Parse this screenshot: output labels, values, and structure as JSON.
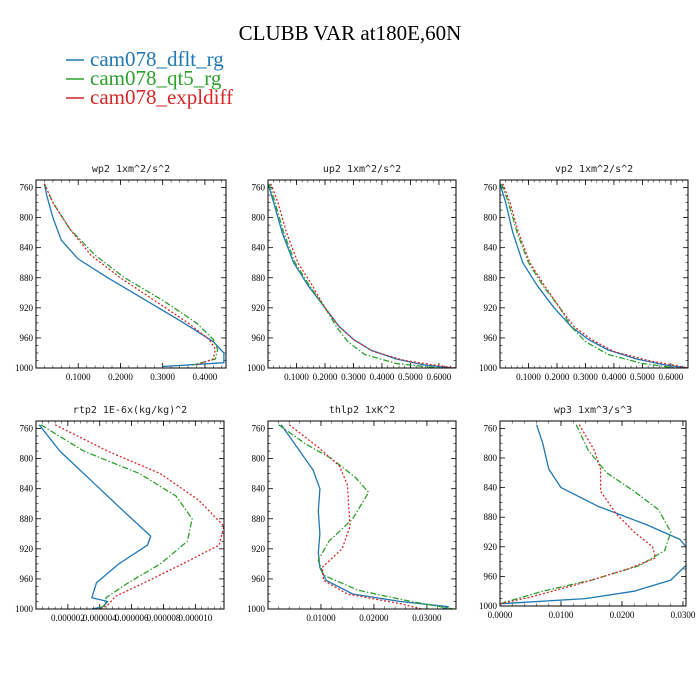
{
  "figure": {
    "title": "CLUBB VAR at180E,60N",
    "legend": [
      {
        "label": "cam078_dflt_rg",
        "color": "#1f77b4",
        "dash": "solid"
      },
      {
        "label": "cam078_qt5_rg",
        "color": "#2ca02c",
        "dash": "dashdot"
      },
      {
        "label": "cam078_expldiff",
        "color": "#d62728",
        "dash": "dot"
      }
    ]
  },
  "chart_data": [
    {
      "type": "line",
      "title": "wp2  1xm^2/s^2",
      "xlim": [
        0,
        0.45
      ],
      "ylim": [
        1000,
        750
      ],
      "xticks": [
        0.1,
        0.2,
        0.3,
        0.4
      ],
      "xtick_labels": [
        "0.1000",
        "0.2000",
        "0.3000",
        "0.4000"
      ],
      "yticks": [
        760,
        800,
        840,
        880,
        920,
        960,
        1000
      ],
      "series": [
        {
          "name": "cam078_dflt_rg",
          "x": [
            0.02,
            0.025,
            0.04,
            0.06,
            0.1,
            0.17,
            0.26,
            0.35,
            0.42,
            0.445,
            0.445,
            0.3
          ],
          "y": [
            755,
            770,
            800,
            830,
            855,
            880,
            910,
            940,
            965,
            980,
            993,
            998
          ]
        },
        {
          "name": "cam078_qt5_rg",
          "x": [
            0.02,
            0.04,
            0.08,
            0.14,
            0.21,
            0.3,
            0.38,
            0.42,
            0.43,
            0.425,
            0.37
          ],
          "y": [
            755,
            780,
            815,
            850,
            880,
            910,
            940,
            962,
            975,
            988,
            996
          ]
        },
        {
          "name": "cam078_expldiff",
          "x": [
            0.02,
            0.04,
            0.08,
            0.13,
            0.2,
            0.28,
            0.36,
            0.41,
            0.425,
            0.42,
            0.38
          ],
          "y": [
            755,
            780,
            815,
            850,
            880,
            910,
            940,
            962,
            975,
            988,
            996
          ]
        }
      ]
    },
    {
      "type": "line",
      "title": "up2  1xm^2/s^2",
      "xlim": [
        0,
        0.66
      ],
      "ylim": [
        1000,
        750
      ],
      "xticks": [
        0.1,
        0.2,
        0.3,
        0.4,
        0.5,
        0.6
      ],
      "xtick_labels": [
        "0.1000",
        "0.2000",
        "0.3000",
        "0.4000",
        "0.5000",
        "0.6000"
      ],
      "yticks": [
        760,
        800,
        840,
        880,
        920,
        960,
        1000
      ],
      "series": [
        {
          "name": "cam078_dflt_rg",
          "x": [
            0.0,
            0.02,
            0.05,
            0.09,
            0.14,
            0.2,
            0.25,
            0.3,
            0.36,
            0.45,
            0.55,
            0.65
          ],
          "y": [
            755,
            780,
            820,
            860,
            890,
            920,
            945,
            962,
            976,
            988,
            996,
            1000
          ]
        },
        {
          "name": "cam078_qt5_rg",
          "x": [
            0.005,
            0.025,
            0.055,
            0.095,
            0.145,
            0.2,
            0.24,
            0.28,
            0.34,
            0.45,
            0.6
          ],
          "y": [
            755,
            780,
            820,
            860,
            890,
            920,
            945,
            965,
            982,
            994,
            1000
          ]
        },
        {
          "name": "cam078_expldiff",
          "x": [
            0.01,
            0.035,
            0.065,
            0.105,
            0.155,
            0.2,
            0.25,
            0.3,
            0.37,
            0.48,
            0.6,
            0.66
          ],
          "y": [
            755,
            780,
            820,
            860,
            890,
            920,
            945,
            962,
            978,
            990,
            997,
            1000
          ]
        }
      ]
    },
    {
      "type": "line",
      "title": "vp2  1xm^2/s^2",
      "xlim": [
        0,
        0.66
      ],
      "ylim": [
        1000,
        750
      ],
      "xticks": [
        0.1,
        0.2,
        0.3,
        0.4,
        0.5,
        0.6
      ],
      "xtick_labels": [
        "0.1000",
        "0.2000",
        "0.3000",
        "0.4000",
        "0.5000",
        "0.6000"
      ],
      "yticks": [
        760,
        800,
        840,
        880,
        920,
        960,
        1000
      ],
      "series": [
        {
          "name": "cam078_dflt_rg",
          "x": [
            0.0,
            0.02,
            0.045,
            0.08,
            0.13,
            0.19,
            0.25,
            0.31,
            0.38,
            0.48,
            0.58,
            0.66
          ],
          "y": [
            755,
            780,
            820,
            860,
            890,
            920,
            945,
            962,
            976,
            988,
            996,
            1000
          ]
        },
        {
          "name": "cam078_qt5_rg",
          "x": [
            0.005,
            0.03,
            0.06,
            0.1,
            0.15,
            0.21,
            0.25,
            0.3,
            0.38,
            0.5,
            0.62
          ],
          "y": [
            755,
            780,
            820,
            860,
            890,
            920,
            945,
            965,
            982,
            994,
            1000
          ]
        },
        {
          "name": "cam078_expldiff",
          "x": [
            0.01,
            0.035,
            0.065,
            0.105,
            0.155,
            0.21,
            0.26,
            0.32,
            0.4,
            0.52,
            0.62,
            0.66
          ],
          "y": [
            755,
            780,
            820,
            860,
            890,
            920,
            945,
            962,
            978,
            990,
            997,
            1000
          ]
        }
      ]
    },
    {
      "type": "line",
      "title": "rtp2  1E-6x(kg/kg)^2",
      "xlim": [
        0,
        1.18e-05
      ],
      "ylim": [
        1000,
        750
      ],
      "xticks": [
        2e-06,
        4e-06,
        6e-06,
        8e-06,
        1e-05
      ],
      "xtick_labels": [
        "0.000002",
        "0.000004",
        "0.000006",
        "0.000008",
        "0.000010"
      ],
      "yticks": [
        760,
        800,
        840,
        880,
        920,
        960,
        1000
      ],
      "series": [
        {
          "name": "cam078_dflt_rg",
          "x": [
            2e-07,
            1.5e-06,
            3.5e-06,
            5.5e-06,
            7.2e-06,
            7e-06,
            5.2e-06,
            3.8e-06,
            3.5e-06,
            4.5e-06,
            4.2e-06,
            3.5e-06
          ],
          "y": [
            755,
            790,
            830,
            870,
            903,
            915,
            940,
            965,
            985,
            990,
            997,
            1000
          ]
        },
        {
          "name": "cam078_qt5_rg",
          "x": [
            3e-07,
            3e-06,
            6.5e-06,
            8.8e-06,
            9.8e-06,
            9.5e-06,
            7.8e-06,
            5.8e-06,
            4.4e-06,
            4.3e-06,
            4e-06
          ],
          "y": [
            755,
            790,
            820,
            850,
            880,
            910,
            940,
            965,
            985,
            995,
            1000
          ]
        },
        {
          "name": "cam078_expldiff",
          "x": [
            1.2e-06,
            4.5e-06,
            7.8e-06,
            1.02e-05,
            1.18e-05,
            1.15e-05,
            9.2e-06,
            6.8e-06,
            5e-06,
            4.5e-06,
            4e-06
          ],
          "y": [
            755,
            790,
            820,
            855,
            890,
            915,
            940,
            965,
            983,
            995,
            1000
          ]
        }
      ]
    },
    {
      "type": "line",
      "title": "thlp2  1xK^2",
      "xlim": [
        0,
        0.0355
      ],
      "ylim": [
        1000,
        750
      ],
      "xticks": [
        0.01,
        0.02,
        0.03
      ],
      "xtick_labels": [
        "0.01000",
        "0.02000",
        "0.03000"
      ],
      "yticks": [
        760,
        800,
        840,
        880,
        920,
        960,
        1000
      ],
      "series": [
        {
          "name": "cam078_dflt_rg",
          "x": [
            0.0025,
            0.006,
            0.0085,
            0.0098,
            0.0095,
            0.0098,
            0.0095,
            0.0098,
            0.011,
            0.016,
            0.025,
            0.034,
            0.033
          ],
          "y": [
            755,
            790,
            815,
            840,
            870,
            900,
            925,
            945,
            962,
            980,
            990,
            997,
            1000
          ]
        },
        {
          "name": "cam078_qt5_rg",
          "x": [
            0.002,
            0.007,
            0.012,
            0.0165,
            0.019,
            0.016,
            0.0115,
            0.0095,
            0.0105,
            0.017,
            0.027,
            0.035
          ],
          "y": [
            755,
            780,
            800,
            825,
            845,
            880,
            910,
            935,
            955,
            975,
            990,
            1000
          ]
        },
        {
          "name": "cam078_expldiff",
          "x": [
            0.004,
            0.0095,
            0.0135,
            0.015,
            0.0152,
            0.0155,
            0.014,
            0.0102,
            0.0105,
            0.015,
            0.025,
            0.029
          ],
          "y": [
            755,
            785,
            810,
            835,
            860,
            890,
            920,
            945,
            962,
            980,
            993,
            1000
          ]
        }
      ]
    },
    {
      "type": "line",
      "title": "wp3  1xm^3/s^3",
      "xlim": [
        0,
        0.0305
      ],
      "ylim": [
        1000,
        750
      ],
      "xticks": [
        0.0,
        0.01,
        0.02,
        0.03
      ],
      "xtick_labels": [
        "0.0000",
        "0.0100",
        "0.0200",
        "0.0300"
      ],
      "yticks": [
        760,
        800,
        840,
        880,
        920,
        960,
        1000
      ],
      "series": [
        {
          "name": "cam078_dflt_rg",
          "x": [
            0.006,
            0.007,
            0.008,
            0.01,
            0.016,
            0.024,
            0.0295,
            0.031,
            0.0305,
            0.028,
            0.022,
            0.014,
            0.004,
            0.0
          ],
          "y": [
            755,
            780,
            815,
            840,
            865,
            890,
            910,
            925,
            945,
            965,
            980,
            990,
            995,
            997
          ]
        },
        {
          "name": "cam078_qt5_rg",
          "x": [
            0.0125,
            0.0145,
            0.0175,
            0.022,
            0.026,
            0.028,
            0.027,
            0.023,
            0.015,
            0.007,
            0.002,
            0.0
          ],
          "y": [
            755,
            790,
            820,
            845,
            870,
            900,
            925,
            945,
            965,
            980,
            992,
            997
          ]
        },
        {
          "name": "cam078_expldiff",
          "x": [
            0.013,
            0.0155,
            0.0165,
            0.0165,
            0.019,
            0.022,
            0.025,
            0.0255,
            0.021,
            0.013,
            0.005,
            0.0
          ],
          "y": [
            755,
            790,
            815,
            845,
            875,
            900,
            920,
            935,
            950,
            970,
            988,
            997
          ]
        }
      ]
    }
  ]
}
